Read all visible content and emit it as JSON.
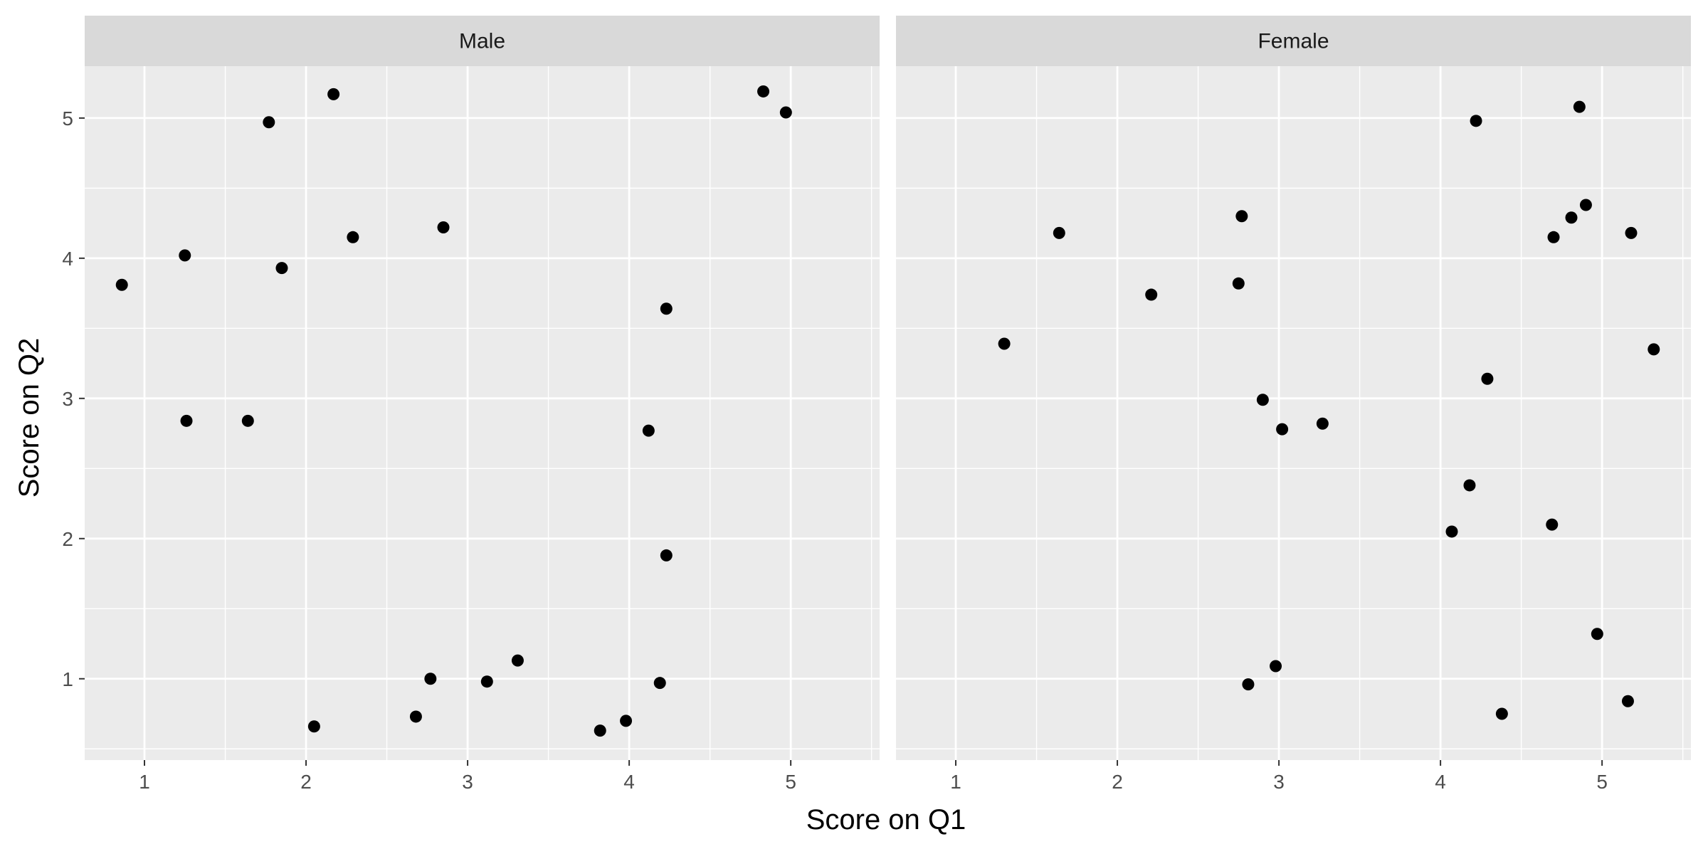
{
  "chart_data": {
    "type": "scatter",
    "xlabel": "Score on Q1",
    "ylabel": "Score on Q2",
    "xlim": [
      0.63,
      5.55
    ],
    "ylim": [
      0.42,
      5.37
    ],
    "x_ticks": [
      1,
      2,
      3,
      4,
      5
    ],
    "y_ticks": [
      1,
      2,
      3,
      4,
      5
    ],
    "grid": true,
    "colors": {
      "panel_background": "#ebebeb",
      "strip_background": "#d9d9d9",
      "grid": "#ffffff",
      "point": "#000000"
    },
    "facets": [
      {
        "name": "Male",
        "points": [
          {
            "x": 0.86,
            "y": 3.81
          },
          {
            "x": 1.25,
            "y": 4.02
          },
          {
            "x": 1.26,
            "y": 2.84
          },
          {
            "x": 1.64,
            "y": 2.84
          },
          {
            "x": 1.77,
            "y": 4.97
          },
          {
            "x": 1.85,
            "y": 3.93
          },
          {
            "x": 2.05,
            "y": 0.66
          },
          {
            "x": 2.17,
            "y": 5.17
          },
          {
            "x": 2.29,
            "y": 4.15
          },
          {
            "x": 2.68,
            "y": 0.73
          },
          {
            "x": 2.77,
            "y": 1.0
          },
          {
            "x": 2.85,
            "y": 4.22
          },
          {
            "x": 3.12,
            "y": 0.98
          },
          {
            "x": 3.31,
            "y": 1.13
          },
          {
            "x": 3.82,
            "y": 0.63
          },
          {
            "x": 3.98,
            "y": 0.7
          },
          {
            "x": 4.12,
            "y": 2.77
          },
          {
            "x": 4.19,
            "y": 0.97
          },
          {
            "x": 4.23,
            "y": 3.64
          },
          {
            "x": 4.23,
            "y": 1.88
          },
          {
            "x": 4.83,
            "y": 5.19
          },
          {
            "x": 4.97,
            "y": 5.04
          }
        ]
      },
      {
        "name": "Female",
        "points": [
          {
            "x": 1.3,
            "y": 3.39
          },
          {
            "x": 1.64,
            "y": 4.18
          },
          {
            "x": 2.21,
            "y": 3.74
          },
          {
            "x": 2.75,
            "y": 3.82
          },
          {
            "x": 2.77,
            "y": 4.3
          },
          {
            "x": 2.81,
            "y": 0.96
          },
          {
            "x": 2.9,
            "y": 2.99
          },
          {
            "x": 2.98,
            "y": 1.09
          },
          {
            "x": 3.02,
            "y": 2.78
          },
          {
            "x": 3.27,
            "y": 2.82
          },
          {
            "x": 4.07,
            "y": 2.05
          },
          {
            "x": 4.18,
            "y": 2.38
          },
          {
            "x": 4.22,
            "y": 4.98
          },
          {
            "x": 4.29,
            "y": 3.14
          },
          {
            "x": 4.38,
            "y": 0.75
          },
          {
            "x": 4.69,
            "y": 2.1
          },
          {
            "x": 4.7,
            "y": 4.15
          },
          {
            "x": 4.81,
            "y": 4.29
          },
          {
            "x": 4.86,
            "y": 5.08
          },
          {
            "x": 4.9,
            "y": 4.38
          },
          {
            "x": 4.97,
            "y": 1.32
          },
          {
            "x": 5.16,
            "y": 0.84
          },
          {
            "x": 5.18,
            "y": 4.18
          },
          {
            "x": 5.32,
            "y": 3.35
          }
        ]
      }
    ]
  }
}
